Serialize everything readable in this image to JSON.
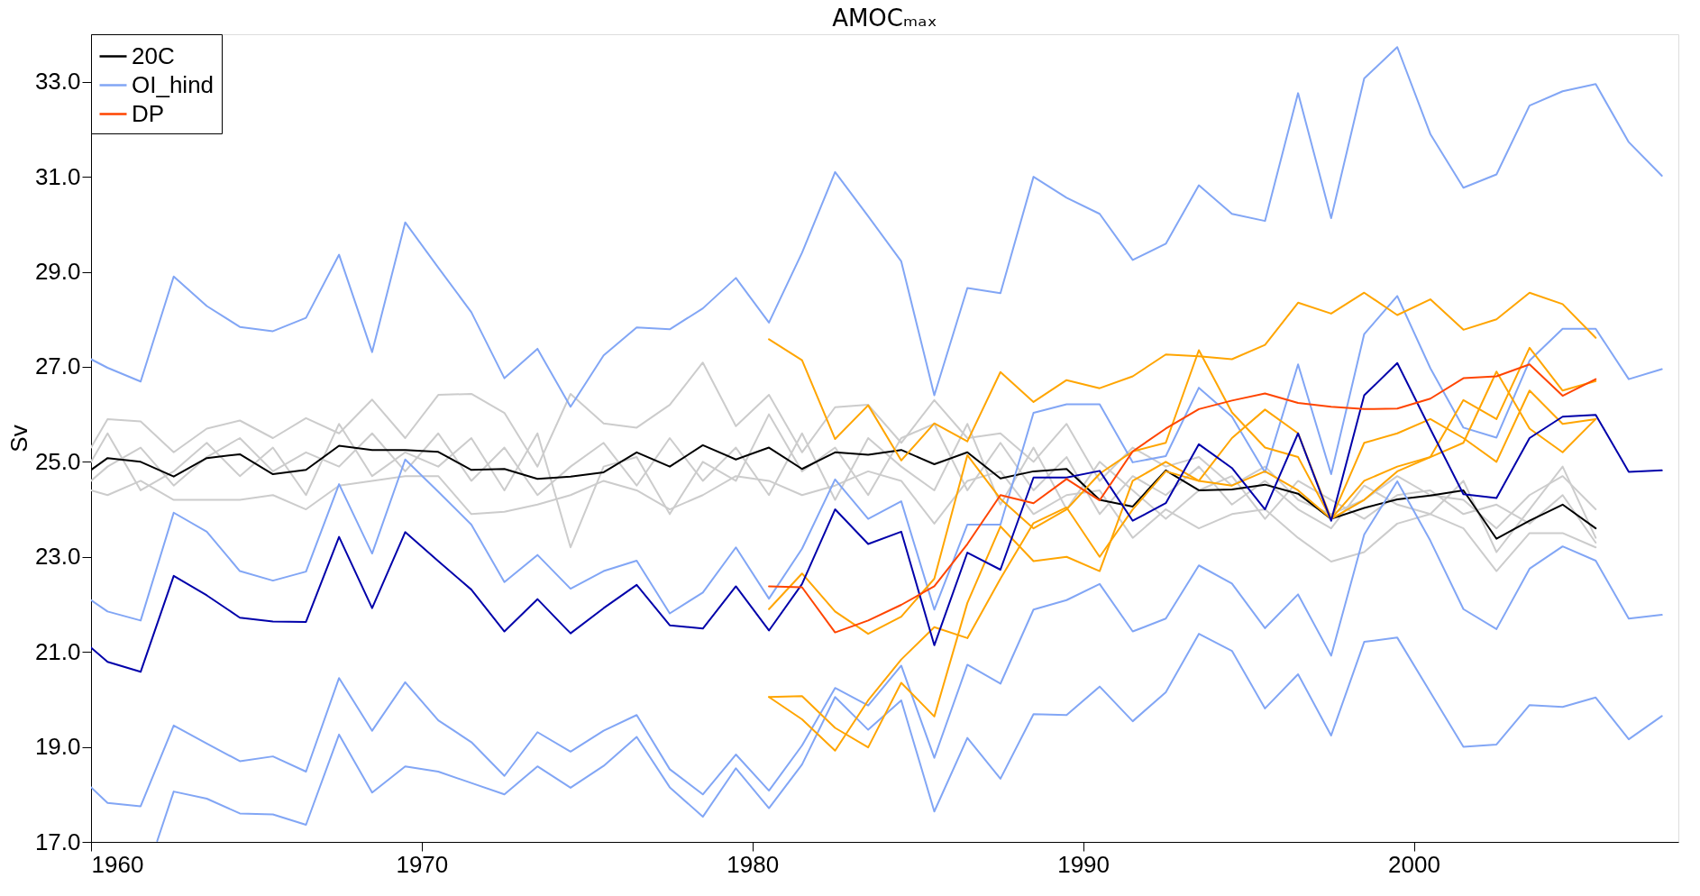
{
  "chart_data": {
    "type": "line",
    "title": "AMOCₘₐₓ",
    "ylabel": "Sv",
    "xlim": [
      1960,
      2008
    ],
    "xticks": [
      1960,
      1970,
      1980,
      1990,
      2000
    ],
    "ylim": [
      17,
      34
    ],
    "yticks": [
      {
        "value": 17,
        "label": "17.0"
      },
      {
        "value": 19,
        "label": "19.0"
      },
      {
        "value": 21,
        "label": "21.0"
      },
      {
        "value": 23,
        "label": "23.0"
      },
      {
        "value": 25,
        "label": "25.0"
      },
      {
        "value": 27,
        "label": "27.0"
      },
      {
        "value": 29,
        "label": "29.0"
      },
      {
        "value": 31,
        "label": "31.0"
      },
      {
        "value": 33,
        "label": "33.0"
      }
    ],
    "legend": "top left",
    "x": [
      1960,
      1960.5,
      1961.5,
      1962.5,
      1963.5,
      1964.5,
      1965.5,
      1966.5,
      1967.5,
      1968.5,
      1969.5,
      1970.5,
      1971.5,
      1972.5,
      1973.5,
      1974.5,
      1975.5,
      1976.5,
      1977.5,
      1978.5,
      1979.5,
      1980.5,
      1981.5,
      1982.5,
      1983.5,
      1984.5,
      1985.5,
      1986.5,
      1987.5,
      1988.5,
      1989.5,
      1990.5,
      1991.5,
      1992.5,
      1993.5,
      1994.5,
      1995.5,
      1996.5,
      1997.5,
      1998.5,
      1999.5,
      2000.5,
      2001.5,
      2002.5,
      2003.5,
      2004.5,
      2005.5,
      2006.5,
      2007.5
    ],
    "series": [
      {
        "color": "#cccccc",
        "values": [
          25.3,
          25.9,
          25.85,
          25.2,
          25.7,
          25.87,
          25.5,
          25.92,
          25.6,
          26.31,
          25.5,
          26.41,
          26.43,
          26.03,
          24.9,
          26.43,
          25.81,
          25.72,
          26.2,
          27.09,
          25.75,
          26.41,
          25.2,
          26.15,
          26.2,
          25.4,
          26.3,
          25.5,
          25.6,
          25.0,
          25.8,
          24.6,
          25.3,
          24.9,
          25.1,
          24.5,
          24.9,
          24.2,
          23.9,
          24.2,
          24.7,
          24.3,
          24.2,
          23.6,
          24.3,
          24.7,
          24.0,
          null,
          null
        ]
      },
      {
        "color": "#cccccc",
        "values": [
          24.4,
          24.3,
          24.6,
          24.2,
          24.2,
          24.2,
          24.3,
          24.0,
          24.5,
          24.6,
          24.7,
          24.7,
          23.9,
          23.95,
          24.1,
          24.3,
          24.6,
          24.4,
          24.0,
          24.3,
          24.7,
          24.6,
          24.3,
          24.5,
          24.8,
          24.6,
          23.7,
          24.6,
          24.8,
          23.9,
          24.3,
          24.4,
          23.4,
          24.0,
          23.6,
          23.9,
          24.0,
          23.4,
          22.9,
          23.1,
          23.7,
          23.9,
          23.6,
          22.7,
          23.5,
          23.5,
          23.2,
          null,
          null
        ]
      },
      {
        "color": "#cccccc",
        "values": [
          25.0,
          25.6,
          24.4,
          24.8,
          25.4,
          24.7,
          25.3,
          24.3,
          25.8,
          24.7,
          25.2,
          24.9,
          25.5,
          24.4,
          25.6,
          23.2,
          24.9,
          25.1,
          23.9,
          25.0,
          24.6,
          26.0,
          24.8,
          25.3,
          24.3,
          25.5,
          25.8,
          24.4,
          25.4,
          24.4,
          25.1,
          23.9,
          24.7,
          24.3,
          24.9,
          24.1,
          24.6,
          24.0,
          23.6,
          24.5,
          24.1,
          23.9,
          24.6,
          23.1,
          24.0,
          24.9,
          23.4,
          null,
          null
        ]
      },
      {
        "color": "#cccccc",
        "values": [
          24.6,
          24.9,
          25.3,
          24.5,
          25.1,
          25.5,
          24.8,
          25.2,
          24.9,
          25.6,
          24.8,
          25.6,
          24.6,
          25.3,
          24.3,
          24.9,
          25.4,
          24.5,
          25.5,
          24.6,
          25.3,
          24.3,
          25.6,
          24.2,
          25.5,
          24.9,
          24.4,
          25.8,
          24.1,
          25.3,
          24.0,
          25.0,
          24.4,
          23.8,
          24.4,
          24.7,
          23.8,
          24.6,
          24.2,
          23.8,
          24.3,
          24.4,
          23.9,
          24.1,
          23.7,
          24.3,
          23.3,
          null,
          null
        ]
      },
      {
        "name": "20C",
        "color": "#000000",
        "values": [
          24.83,
          25.08,
          25.0,
          24.69,
          25.08,
          25.16,
          24.74,
          24.83,
          25.34,
          25.25,
          25.25,
          25.21,
          24.83,
          24.85,
          24.64,
          24.69,
          24.78,
          25.2,
          24.9,
          25.35,
          25.05,
          25.3,
          24.85,
          25.2,
          25.15,
          25.25,
          24.95,
          25.2,
          24.65,
          24.8,
          24.85,
          24.2,
          24.06,
          24.82,
          24.4,
          24.42,
          24.52,
          24.33,
          23.8,
          24.03,
          24.21,
          24.29,
          24.4,
          23.38,
          23.76,
          24.1,
          23.6,
          null,
          null
        ]
      },
      {
        "name": "OI_hind",
        "color": "#82a6f5",
        "values": [
          27.16,
          26.98,
          26.69,
          28.9,
          28.28,
          27.84,
          27.75,
          28.03,
          29.36,
          27.31,
          30.04,
          29.09,
          28.15,
          26.76,
          27.38,
          26.16,
          27.24,
          27.83,
          27.79,
          28.23,
          28.87,
          27.93,
          29.4,
          31.1,
          30.17,
          29.22,
          26.4,
          28.66,
          28.55,
          31.0,
          30.56,
          30.22,
          29.25,
          29.59,
          30.82,
          30.22,
          30.07,
          32.76,
          30.13,
          33.07,
          33.73,
          31.9,
          30.77,
          31.05,
          32.5,
          32.8,
          32.95,
          31.73,
          31.02
        ]
      },
      {
        "color": "#82a6f5",
        "values": [
          22.09,
          21.85,
          21.66,
          23.93,
          23.53,
          22.7,
          22.5,
          22.69,
          24.53,
          23.07,
          25.05,
          24.37,
          23.68,
          22.47,
          23.04,
          22.33,
          22.7,
          22.92,
          21.81,
          22.25,
          23.2,
          22.12,
          23.17,
          24.63,
          23.8,
          24.17,
          21.89,
          23.68,
          23.68,
          26.03,
          26.21,
          26.21,
          24.99,
          25.12,
          26.56,
          25.95,
          24.78,
          27.05,
          24.74,
          27.69,
          28.49,
          26.97,
          25.72,
          25.51,
          27.13,
          27.8,
          27.8,
          26.74,
          26.95
        ]
      },
      {
        "color": "#82a6f5",
        "values": [
          18.15,
          17.82,
          17.75,
          19.45,
          19.07,
          18.7,
          18.8,
          18.48,
          20.45,
          19.34,
          20.36,
          19.56,
          19.1,
          18.39,
          19.31,
          18.9,
          19.34,
          19.67,
          18.53,
          18.0,
          18.84,
          18.08,
          19.03,
          20.24,
          19.87,
          20.71,
          18.77,
          20.73,
          20.33,
          21.89,
          22.09,
          22.43,
          21.43,
          21.7,
          22.82,
          22.44,
          21.5,
          22.21,
          20.92,
          23.47,
          24.59,
          23.34,
          21.9,
          21.48,
          22.75,
          23.22,
          22.92,
          21.7,
          21.78
        ]
      },
      {
        "color": "#82a6f5",
        "x": [
          1962,
          1962.5,
          1963.5,
          1964.5,
          1965.5,
          1966.5,
          1967.5,
          1968.5,
          1969.5,
          1970.5,
          1971.5,
          1972.5,
          1973.5,
          1974.5,
          1975.5,
          1976.5,
          1977.5,
          1978.5,
          1979.5,
          1980.5,
          1981.5,
          1982.5,
          1983.5,
          1984.5,
          1985.5,
          1986.5,
          1987.5,
          1988.5,
          1989.5,
          1990.5,
          1991.5,
          1992.5,
          1993.5,
          1994.5,
          1995.5,
          1996.5,
          1997.5,
          1998.5,
          1999.5,
          2000.5,
          2001.5,
          2002.5,
          2003.5,
          2004.5,
          2005.5,
          2006.5,
          2007.5
        ],
        "values": [
          17.02,
          18.06,
          17.91,
          17.6,
          17.58,
          17.36,
          19.26,
          18.04,
          18.59,
          18.48,
          18.24,
          18.0,
          18.59,
          18.14,
          18.6,
          19.21,
          18.15,
          17.53,
          18.55,
          17.71,
          18.63,
          20.05,
          19.36,
          19.98,
          17.64,
          19.19,
          18.33,
          19.69,
          19.67,
          20.27,
          19.54,
          20.15,
          21.38,
          21.02,
          19.81,
          20.53,
          19.24,
          21.21,
          21.3,
          20.15,
          19.0,
          19.05,
          19.88,
          19.84,
          20.04,
          19.16,
          19.65
        ]
      },
      {
        "color": "#ffa500",
        "x": [
          1980.5,
          1981.5,
          1982.5,
          1983.5,
          1984.5,
          1985.5,
          1986.5,
          1987.5,
          1988.5,
          1989.5,
          1990.5,
          1991.5,
          1992.5,
          1993.5,
          1994.5,
          1995.5,
          1996.5,
          1997.5,
          1998.5,
          1999.5,
          2000.5,
          2001.5,
          2002.5,
          2003.5,
          2004.5,
          2005.5
        ],
        "values": [
          27.58,
          27.14,
          25.48,
          26.19,
          25.03,
          25.81,
          25.43,
          26.89,
          26.26,
          26.72,
          26.55,
          26.8,
          27.26,
          27.22,
          27.16,
          27.46,
          28.35,
          28.12,
          28.56,
          28.09,
          28.42,
          27.78,
          28.0,
          28.56,
          28.32,
          27.61
        ]
      },
      {
        "color": "#ffa500",
        "x": [
          1980.5,
          1981.5,
          1982.5,
          1983.5,
          1984.5,
          1985.5,
          1986.5,
          1987.5,
          1988.5,
          1989.5,
          1990.5,
          1991.5,
          1992.5,
          1993.5,
          1994.5,
          1995.5,
          1996.5,
          1997.5,
          1998.5,
          1999.5,
          2000.5,
          2001.5,
          2002.5,
          2003.5,
          2004.5,
          2005.5
        ],
        "values": [
          21.9,
          22.65,
          21.85,
          21.38,
          21.74,
          22.54,
          25.14,
          24.22,
          23.6,
          24.0,
          24.75,
          25.22,
          25.4,
          27.35,
          26.04,
          25.3,
          25.1,
          23.8,
          24.6,
          24.9,
          25.1,
          25.4,
          26.9,
          25.7,
          25.2,
          25.9
        ]
      },
      {
        "color": "#ffa500",
        "x": [
          1980.5,
          1981.5,
          1982.5,
          1983.5,
          1984.5,
          1985.5,
          1986.5,
          1987.5,
          1988.5,
          1989.5,
          1990.5,
          1991.5,
          1992.5,
          1993.5,
          1994.5,
          1995.5,
          1996.5,
          1997.5,
          1998.5,
          1999.5,
          2000.5,
          2001.5,
          2002.5,
          2003.5,
          2004.5,
          2005.5
        ],
        "values": [
          20.05,
          20.07,
          19.4,
          18.99,
          20.35,
          19.64,
          22.03,
          23.64,
          22.91,
          23.0,
          22.7,
          24.6,
          25.0,
          24.6,
          25.5,
          26.1,
          25.6,
          23.8,
          25.4,
          25.6,
          25.9,
          25.5,
          25.0,
          26.5,
          25.8,
          25.9
        ]
      },
      {
        "color": "#ffa500",
        "x": [
          1980.5,
          1981.5,
          1982.5,
          1983.5,
          1984.5,
          1985.5,
          1986.5,
          1987.5,
          1988.5,
          1989.5,
          1990.5,
          1991.5,
          1992.5,
          1993.5,
          1994.5,
          1995.5,
          1996.5,
          1997.5,
          1998.5,
          1999.5,
          2000.5,
          2001.5,
          2002.5,
          2003.5,
          2004.5,
          2005.5
        ],
        "values": [
          20.05,
          19.58,
          18.92,
          19.98,
          20.84,
          21.52,
          21.29,
          22.54,
          23.71,
          24.04,
          23.0,
          24.0,
          24.8,
          24.6,
          24.5,
          24.8,
          24.4,
          23.8,
          24.2,
          24.8,
          25.1,
          26.3,
          25.9,
          27.4,
          26.5,
          26.7
        ]
      },
      {
        "color": "#0000aa",
        "values": [
          21.09,
          20.79,
          20.58,
          22.6,
          22.19,
          21.72,
          21.64,
          21.63,
          23.42,
          21.92,
          23.52,
          22.91,
          22.31,
          21.43,
          22.11,
          21.39,
          21.92,
          22.41,
          21.56,
          21.49,
          22.38,
          21.45,
          22.43,
          24.0,
          23.27,
          23.53,
          21.14,
          23.09,
          22.73,
          24.67,
          24.67,
          24.81,
          23.76,
          24.13,
          25.37,
          24.87,
          24.0,
          25.6,
          23.76,
          26.4,
          27.08,
          25.69,
          24.32,
          24.24,
          25.5,
          25.95,
          25.99,
          24.79,
          24.82
        ]
      },
      {
        "name": "DP",
        "color": "#ff4500",
        "x": [
          1980.5,
          1981.5,
          1982.5,
          1983.5,
          1984.5,
          1985.5,
          1986.5,
          1987.5,
          1988.5,
          1989.5,
          1990.5,
          1991.5,
          1992.5,
          1993.5,
          1994.5,
          1995.5,
          1996.5,
          1997.5,
          1998.5,
          1999.5,
          2000.5,
          2001.5,
          2002.5,
          2003.5,
          2004.5,
          2005.5
        ],
        "values": [
          22.38,
          22.36,
          21.41,
          21.66,
          21.99,
          22.38,
          23.27,
          24.3,
          24.13,
          24.64,
          24.19,
          25.22,
          25.7,
          26.11,
          26.29,
          26.44,
          26.24,
          26.16,
          26.11,
          26.12,
          26.33,
          26.76,
          26.8,
          27.05,
          26.39,
          26.74
        ]
      }
    ]
  }
}
